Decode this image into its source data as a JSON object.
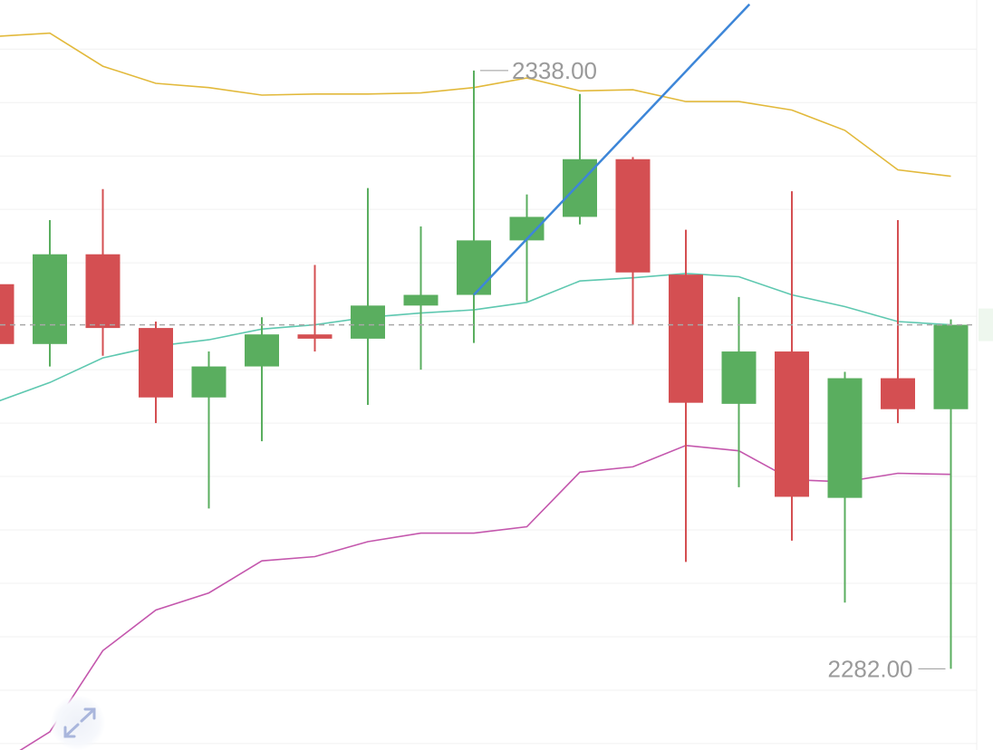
{
  "chart_data": {
    "type": "candlestick",
    "title": "",
    "xlabel": "",
    "ylabel": "",
    "ylim": [
      2274.4,
      2344.6
    ],
    "grid": true,
    "grid_step": 5,
    "colors": {
      "up": "#5aae5f",
      "down": "#d44f52",
      "upper_band": "#e2b93b",
      "middle_band": "#5ec8b0",
      "lower_band": "#c457ad",
      "trendline": "#3d86d8",
      "grid": "#f0f0f0",
      "last_price_line": "#a8a8a8",
      "label": "#9a9a9a"
    },
    "candles": [
      {
        "o": 2318.0,
        "h": 2318.0,
        "l": 2312.4,
        "c": 2312.4
      },
      {
        "o": 2312.4,
        "h": 2324.0,
        "l": 2310.3,
        "c": 2320.8
      },
      {
        "o": 2320.8,
        "h": 2326.9,
        "l": 2311.3,
        "c": 2313.9
      },
      {
        "o": 2313.9,
        "h": 2314.5,
        "l": 2305.0,
        "c": 2307.4
      },
      {
        "o": 2307.4,
        "h": 2311.7,
        "l": 2297.0,
        "c": 2310.3
      },
      {
        "o": 2310.3,
        "h": 2314.9,
        "l": 2303.3,
        "c": 2313.3
      },
      {
        "o": 2313.3,
        "h": 2319.8,
        "l": 2311.7,
        "c": 2312.9
      },
      {
        "o": 2312.9,
        "h": 2327.0,
        "l": 2306.7,
        "c": 2316.0
      },
      {
        "o": 2316.0,
        "h": 2323.4,
        "l": 2310.0,
        "c": 2317.0
      },
      {
        "o": 2317.0,
        "h": 2338.0,
        "l": 2312.5,
        "c": 2322.1
      },
      {
        "o": 2322.1,
        "h": 2326.4,
        "l": 2316.4,
        "c": 2324.3
      },
      {
        "o": 2324.3,
        "h": 2335.8,
        "l": 2323.6,
        "c": 2329.7
      },
      {
        "o": 2329.7,
        "h": 2329.9,
        "l": 2314.2,
        "c": 2319.1
      },
      {
        "o": 2318.9,
        "h": 2323.1,
        "l": 2292.0,
        "c": 2306.9
      },
      {
        "o": 2306.8,
        "h": 2316.8,
        "l": 2299.0,
        "c": 2311.7
      },
      {
        "o": 2311.7,
        "h": 2326.7,
        "l": 2294.0,
        "c": 2298.1
      },
      {
        "o": 2298.0,
        "h": 2309.8,
        "l": 2288.2,
        "c": 2309.2
      },
      {
        "o": 2309.2,
        "h": 2324.0,
        "l": 2305.0,
        "c": 2306.3
      },
      {
        "o": 2306.3,
        "h": 2314.7,
        "l": 2282.0,
        "c": 2314.2
      }
    ],
    "bands": {
      "upper": [
        2341.2,
        2341.5,
        2338.4,
        2336.8,
        2336.4,
        2335.7,
        2335.8,
        2335.8,
        2335.9,
        2336.4,
        2337.3,
        2336.1,
        2336.2,
        2335.1,
        2335.1,
        2334.3,
        2332.4,
        2328.7,
        2328.1
      ],
      "middle": [
        2307.0,
        2308.8,
        2311.1,
        2312.2,
        2312.8,
        2313.8,
        2314.2,
        2314.9,
        2315.3,
        2315.6,
        2316.3,
        2318.3,
        2318.6,
        2319.0,
        2318.7,
        2317.0,
        2315.9,
        2314.5,
        2314.2
      ],
      "lower": [
        2273.0,
        2276.1,
        2283.7,
        2287.5,
        2289.1,
        2292.1,
        2292.5,
        2293.9,
        2294.7,
        2294.7,
        2295.3,
        2300.4,
        2300.9,
        2302.9,
        2302.4,
        2299.7,
        2299.5,
        2300.3,
        2300.2
      ]
    },
    "last_price": 2314.2,
    "trendline": {
      "from": {
        "index": 9,
        "price": 2317.0
      },
      "to": {
        "index": 14.2,
        "price": 2344.2
      }
    },
    "annotations": {
      "max_label": "2338.00",
      "min_label": "2282.00",
      "max_index": 9,
      "min_index": 18
    }
  },
  "controls": {
    "expand_icon": "expand-arrows-icon"
  }
}
